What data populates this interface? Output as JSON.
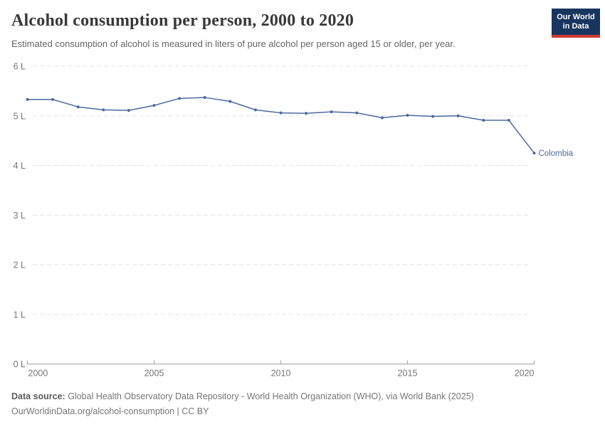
{
  "header": {
    "title": "Alcohol consumption per person, 2000 to 2020",
    "subtitle": "Estimated consumption of alcohol is measured in liters of pure alcohol per person aged 15 or older, per year."
  },
  "logo": {
    "line1": "Our World",
    "line2": "in Data",
    "bg_color": "#18355e",
    "stripe_color": "#cf3a34"
  },
  "chart_data": {
    "type": "line",
    "title": "Alcohol consumption per person, 2000 to 2020",
    "x": [
      2000,
      2001,
      2002,
      2003,
      2004,
      2005,
      2006,
      2007,
      2008,
      2009,
      2010,
      2011,
      2012,
      2013,
      2014,
      2015,
      2016,
      2017,
      2018,
      2019,
      2020
    ],
    "series": [
      {
        "name": "Colombia",
        "color": "#4c6a9e",
        "values": [
          5.33,
          5.33,
          5.18,
          5.12,
          5.11,
          5.21,
          5.35,
          5.37,
          5.29,
          5.12,
          5.06,
          5.05,
          5.08,
          5.06,
          4.96,
          5.01,
          4.99,
          5.0,
          4.91,
          4.91,
          4.25
        ]
      }
    ],
    "xlabel": "",
    "ylabel": "liters of pure alcohol per person",
    "xlim": [
      2000,
      2020
    ],
    "ylim": [
      0,
      6
    ],
    "xticks": [
      2000,
      2005,
      2010,
      2015,
      2020
    ],
    "yticks": [
      0,
      1,
      2,
      3,
      4,
      5,
      6
    ],
    "ytick_labels": [
      "0 L",
      "1 L",
      "2 L",
      "3 L",
      "4 L",
      "5 L",
      "6 L"
    ],
    "grid": "horizontal-dashed",
    "legend_position": "end-of-line-label",
    "end_label": "Colombia",
    "colors": {
      "line": "#4c6a9e",
      "gridline": "#e2e2e2",
      "axis": "#a1a1a1",
      "tick_label": "#757575"
    }
  },
  "footer": {
    "data_source_label": "Data source:",
    "data_source_text": "Global Health Observatory Data Repository - World Health Organization (WHO), via World Bank (2025)",
    "attribution": "OurWorldinData.org/alcohol-consumption | CC BY"
  }
}
